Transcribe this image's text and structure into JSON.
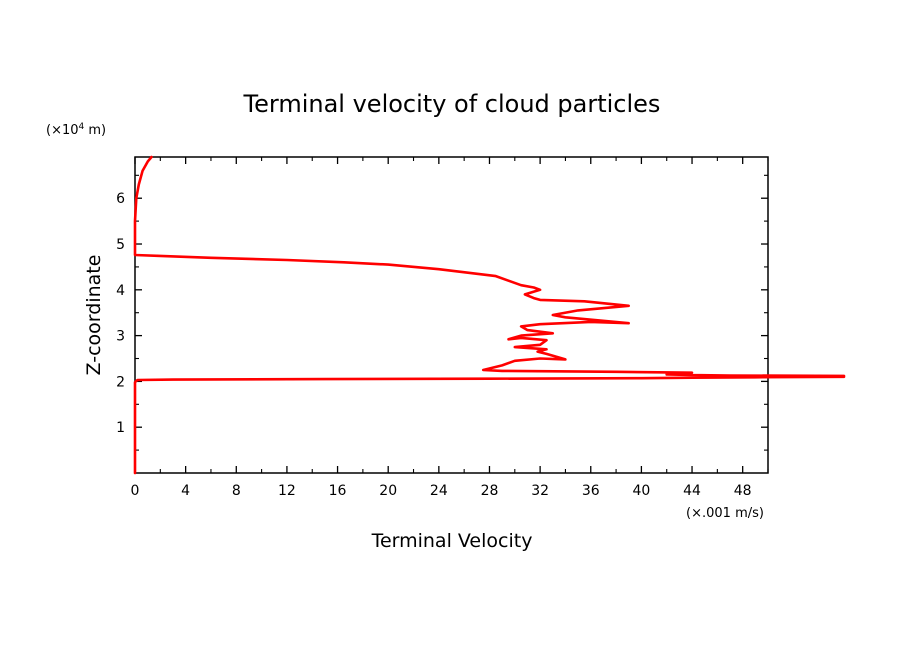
{
  "chart_data": {
    "type": "line",
    "title": "Terminal velocity of cloud particles",
    "xlabel": "Terminal Velocity",
    "xunit": "(×.001 m/s)",
    "ylabel": "Z-coordinate",
    "yunit_prefix": "(×10",
    "yunit_exp": "4",
    "yunit_suffix": " m)",
    "xlim": [
      0,
      50
    ],
    "ylim": [
      0,
      6.9
    ],
    "xticks": [
      0,
      4,
      8,
      12,
      16,
      20,
      24,
      28,
      32,
      36,
      40,
      44,
      48
    ],
    "xtick_labels": [
      "0",
      "4",
      "8",
      "12",
      "16",
      "20",
      "24",
      "28",
      "32",
      "36",
      "40",
      "44",
      "48"
    ],
    "yticks": [
      1,
      2,
      3,
      4,
      5,
      6
    ],
    "ytick_labels": [
      "1",
      "2",
      "3",
      "4",
      "5",
      "6"
    ],
    "grid": false,
    "line_color": "#ff0000",
    "series": [
      {
        "x": [
          0,
          0,
          0,
          0.1,
          0.2,
          3,
          15,
          28,
          40,
          44,
          49,
          56,
          56,
          47,
          44,
          42,
          42,
          44,
          38,
          29,
          27.5,
          29,
          30,
          32,
          34,
          32.5,
          31.8,
          32.5,
          30,
          32,
          32.5,
          30.5,
          29.5,
          30.5,
          33,
          31,
          30.5,
          32,
          36,
          39,
          34,
          33,
          35,
          39,
          35.5,
          32,
          31.5,
          30.8,
          32,
          31.5,
          30.5,
          29.5,
          28.5,
          24,
          20,
          16.5,
          12,
          6,
          2,
          0,
          0,
          0,
          0.1,
          0.3,
          0.6,
          1.0,
          1.3
        ],
        "y": [
          0,
          1.0,
          1.98,
          2.01,
          2.03,
          2.04,
          2.05,
          2.06,
          2.07,
          2.08,
          2.09,
          2.1,
          2.12,
          2.13,
          2.14,
          2.15,
          2.17,
          2.19,
          2.21,
          2.23,
          2.25,
          2.35,
          2.45,
          2.5,
          2.48,
          2.6,
          2.65,
          2.7,
          2.75,
          2.8,
          2.9,
          2.95,
          2.92,
          3.0,
          3.05,
          3.12,
          3.2,
          3.25,
          3.3,
          3.27,
          3.4,
          3.45,
          3.55,
          3.65,
          3.75,
          3.78,
          3.82,
          3.9,
          4.0,
          4.05,
          4.1,
          4.2,
          4.3,
          4.45,
          4.55,
          4.6,
          4.65,
          4.7,
          4.74,
          4.76,
          5.0,
          5.5,
          6.0,
          6.3,
          6.6,
          6.8,
          6.9
        ]
      }
    ]
  }
}
